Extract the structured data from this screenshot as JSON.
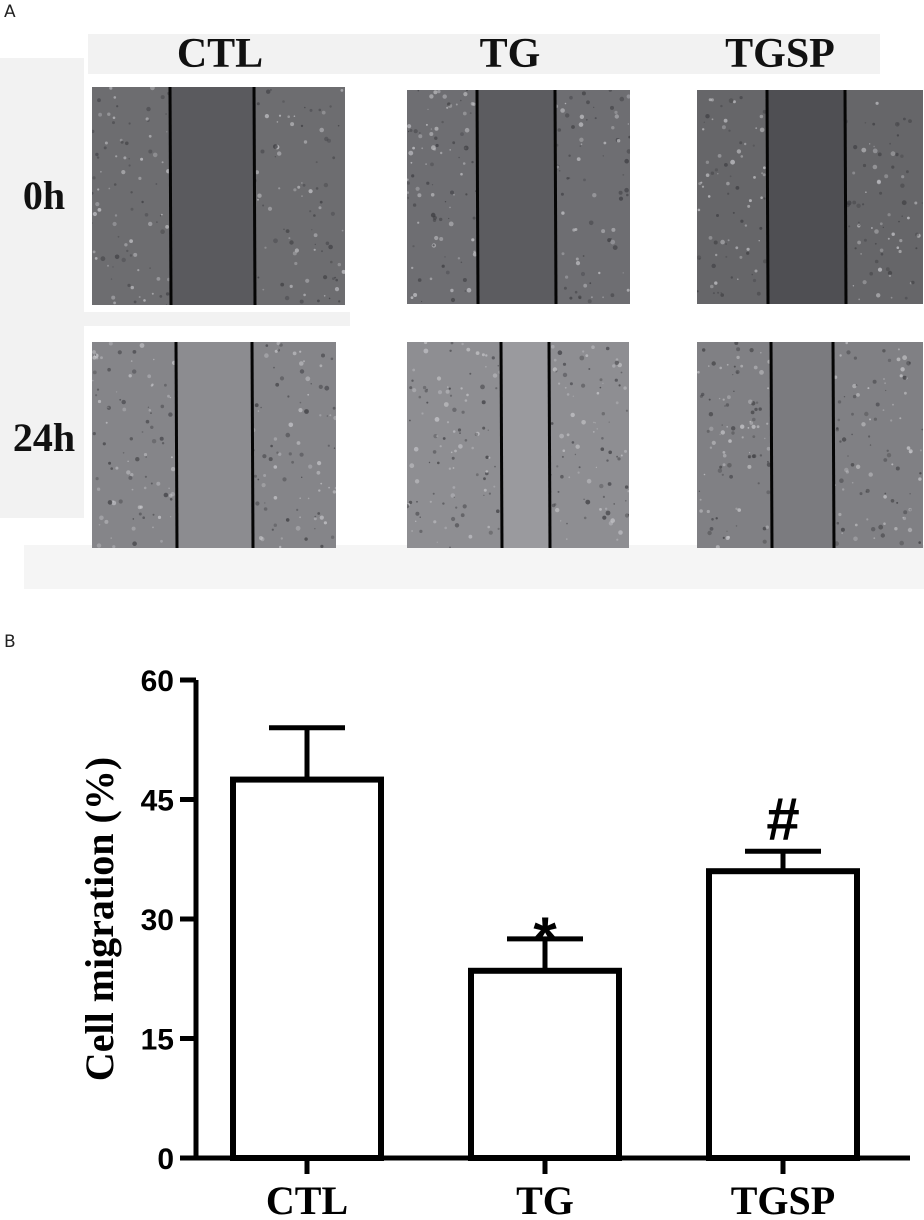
{
  "panel_a": {
    "label": "A",
    "columns": [
      "CTL",
      "TG",
      "TGSP"
    ],
    "rows": [
      "0h",
      "24h"
    ]
  },
  "panel_b": {
    "label": "B"
  },
  "chart_data": {
    "type": "bar",
    "categories": [
      "CTL",
      "TG",
      "TGSP"
    ],
    "values": [
      47.5,
      23.5,
      36
    ],
    "errors": [
      6.5,
      4,
      2.5
    ],
    "annotations": [
      "",
      "*",
      "#"
    ],
    "ylabel": "Cell migration (%)",
    "xlabel": "",
    "ylim": [
      0,
      60
    ],
    "yticks": [
      0,
      15,
      30,
      45,
      60
    ],
    "grid": false,
    "legend": "none",
    "bar_fill": "#ffffff",
    "bar_stroke": "#000000"
  }
}
